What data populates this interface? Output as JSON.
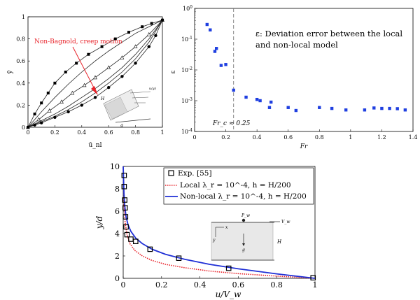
{
  "chart_data": [
    {
      "type": "line",
      "panel": "top-left",
      "xlabel": "ū_nl",
      "ylabel": "ȳ",
      "xlim": [
        0,
        1
      ],
      "ylim": [
        0,
        1
      ],
      "xticks": [
        "0",
        "0.2",
        "0.4",
        "0.6",
        "0.8",
        "1"
      ],
      "yticks": [
        "0",
        "0.2",
        "0.4",
        "0.6",
        "0.8",
        "1"
      ],
      "annotation": "Non-Bagnold, creep motion",
      "annotation_color": "#e8232a",
      "inset_labels": {
        "h": "H",
        "g": "g",
        "u": "u(y)"
      },
      "series": [
        {
          "marker": "square",
          "x": [
            0,
            0.05,
            0.1,
            0.15,
            0.2,
            0.28,
            0.36,
            0.45,
            0.55,
            0.65,
            0.75,
            0.85,
            0.92,
            1.0
          ],
          "y": [
            0,
            0.12,
            0.22,
            0.31,
            0.4,
            0.5,
            0.58,
            0.66,
            0.73,
            0.8,
            0.86,
            0.91,
            0.94,
            0.97
          ]
        },
        {
          "marker": "none",
          "x": [
            0,
            0.1,
            0.2,
            0.3,
            0.4,
            0.5,
            0.6,
            0.7,
            0.8,
            0.9,
            1.0
          ],
          "y": [
            0,
            0.14,
            0.27,
            0.39,
            0.5,
            0.6,
            0.69,
            0.77,
            0.85,
            0.91,
            0.97
          ]
        },
        {
          "marker": "triangle",
          "x": [
            0,
            0.08,
            0.16,
            0.25,
            0.33,
            0.42,
            0.5,
            0.6,
            0.7,
            0.8,
            0.9,
            1.0
          ],
          "y": [
            0,
            0.07,
            0.15,
            0.23,
            0.31,
            0.38,
            0.45,
            0.54,
            0.63,
            0.73,
            0.84,
            0.97
          ]
        },
        {
          "marker": "none",
          "x": [
            0,
            0.1,
            0.2,
            0.3,
            0.4,
            0.5,
            0.6,
            0.7,
            0.8,
            0.9,
            1.0
          ],
          "y": [
            0,
            0.06,
            0.12,
            0.19,
            0.27,
            0.35,
            0.44,
            0.54,
            0.66,
            0.8,
            0.97
          ]
        },
        {
          "marker": "none",
          "x": [
            0,
            0.1,
            0.2,
            0.3,
            0.4,
            0.5,
            0.6,
            0.7,
            0.8,
            0.9,
            1.0
          ],
          "y": [
            0,
            0.05,
            0.1,
            0.16,
            0.23,
            0.31,
            0.4,
            0.5,
            0.62,
            0.77,
            0.97
          ]
        },
        {
          "marker": "circle",
          "x": [
            0,
            0.05,
            0.1,
            0.2,
            0.3,
            0.4,
            0.5,
            0.6,
            0.7,
            0.8,
            0.9,
            0.95,
            1.0
          ],
          "y": [
            0,
            0.02,
            0.04,
            0.09,
            0.14,
            0.2,
            0.27,
            0.36,
            0.46,
            0.58,
            0.73,
            0.83,
            0.97
          ]
        }
      ]
    },
    {
      "type": "scatter",
      "panel": "top-right",
      "xlabel": "Fr",
      "ylabel": "ε",
      "yscale": "log",
      "xlim": [
        0,
        1.4
      ],
      "ylim": [
        0.0001,
        1
      ],
      "xticks": [
        "0",
        "0.2",
        "0.4",
        "0.6",
        "0.8",
        "1",
        "1.2",
        "1.4"
      ],
      "yticks": [
        "10^0",
        "10^-1",
        "10^-2",
        "10^-3",
        "10^-4"
      ],
      "annotation": "ε:  Deviation error between the local and non-local model",
      "critical_label": "Fr_c ≈ 0.25",
      "critical_x": 0.25,
      "point_color": "#1f3fe0",
      "x": [
        0.08,
        0.1,
        0.13,
        0.14,
        0.17,
        0.2,
        0.25,
        0.33,
        0.4,
        0.42,
        0.48,
        0.49,
        0.6,
        0.65,
        0.8,
        0.88,
        0.97,
        1.09,
        1.15,
        1.2,
        1.25,
        1.3,
        1.35
      ],
      "y": [
        0.3,
        0.2,
        0.04,
        0.05,
        0.014,
        0.015,
        0.0022,
        0.0013,
        0.0011,
        0.001,
        0.0006,
        0.0009,
        0.0006,
        0.00048,
        0.0006,
        0.00056,
        0.0005,
        0.0005,
        0.00058,
        0.00056,
        0.00056,
        0.00055,
        0.0005
      ]
    },
    {
      "type": "line",
      "panel": "bottom",
      "xlabel": "u/V_w",
      "ylabel": "y/d",
      "xlim": [
        0,
        1
      ],
      "ylim": [
        0,
        10
      ],
      "xticks": [
        "0",
        "0.2",
        "0.4",
        "0.6",
        "0.8",
        "1"
      ],
      "yticks": [
        "0",
        "2",
        "4",
        "6",
        "8",
        "10"
      ],
      "legend_position": "top-right",
      "legend": [
        {
          "label": "Exp. [55]",
          "style": "square-marker"
        },
        {
          "label": "Local λ_r = 10^-4, h = H/200",
          "style": "dotted",
          "color": "#e8232a"
        },
        {
          "label": "Non-local λ_r = 10^-4, h = H/200",
          "style": "solid",
          "color": "#1f2fd6"
        }
      ],
      "inset_labels": {
        "p": "P_w",
        "x": "x",
        "y": "y",
        "vw": "V_w",
        "g": "g",
        "h": "H"
      },
      "series": [
        {
          "name": "Exp. [55]",
          "x": [
            0.005,
            0.005,
            0.008,
            0.01,
            0.012,
            0.015,
            0.02,
            0.04,
            0.065,
            0.14,
            0.29,
            0.55,
            0.99
          ],
          "y": [
            9.2,
            8.2,
            7.0,
            6.3,
            5.5,
            4.6,
            3.9,
            3.5,
            3.3,
            2.6,
            1.8,
            0.9,
            0.05
          ]
        },
        {
          "name": "Local λ_r = 10^-4, h = H/200",
          "x": [
            0,
            0.005,
            0.01,
            0.02,
            0.035,
            0.06,
            0.1,
            0.15,
            0.22,
            0.32,
            0.45,
            0.6,
            0.8,
            1.0
          ],
          "y": [
            10,
            6.5,
            5.0,
            3.9,
            3.1,
            2.5,
            2.0,
            1.6,
            1.25,
            0.95,
            0.65,
            0.42,
            0.2,
            0.0
          ]
        },
        {
          "name": "Non-local λ_r = 10^-4, h = H/200",
          "x": [
            0,
            0.004,
            0.008,
            0.015,
            0.025,
            0.04,
            0.065,
            0.1,
            0.15,
            0.22,
            0.32,
            0.45,
            0.6,
            0.8,
            1.0
          ],
          "y": [
            10,
            7.6,
            6.5,
            5.5,
            4.8,
            4.2,
            3.6,
            3.1,
            2.6,
            2.15,
            1.7,
            1.25,
            0.85,
            0.4,
            0.0
          ]
        }
      ]
    }
  ]
}
